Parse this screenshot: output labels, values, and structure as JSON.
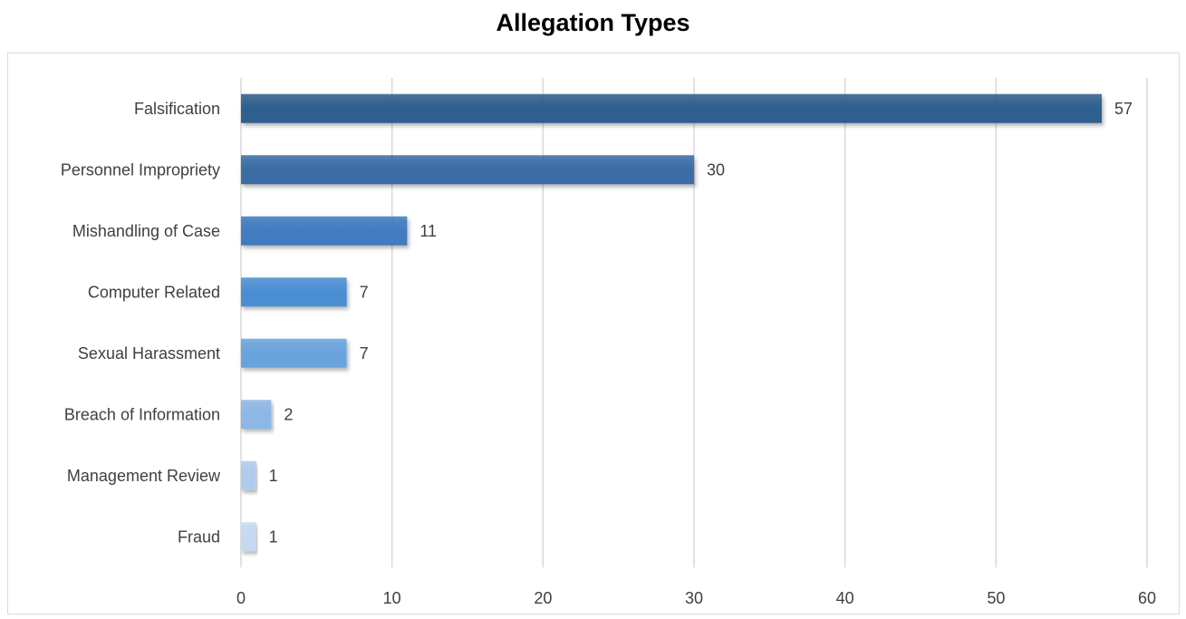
{
  "chart_data": {
    "type": "bar",
    "orientation": "horizontal",
    "title": "Allegation Types",
    "xlabel": "",
    "ylabel": "",
    "categories": [
      "Falsification",
      "Personnel Impropriety",
      "Mishandling of Case",
      "Computer Related",
      "Sexual Harassment",
      "Breach of Information",
      "Management Review",
      "Fraud"
    ],
    "values": [
      57,
      30,
      11,
      7,
      7,
      2,
      1,
      1
    ],
    "xlim": [
      0,
      60
    ],
    "x_ticks": [
      0,
      10,
      20,
      30,
      40,
      50,
      60
    ],
    "grid": true,
    "legend": "none",
    "colors": [
      "#2f5f8f",
      "#3a6da4",
      "#3f7cbf",
      "#4a8ed2",
      "#6aa3dc",
      "#8db7e6",
      "#aecbee",
      "#c6d9f3"
    ]
  }
}
